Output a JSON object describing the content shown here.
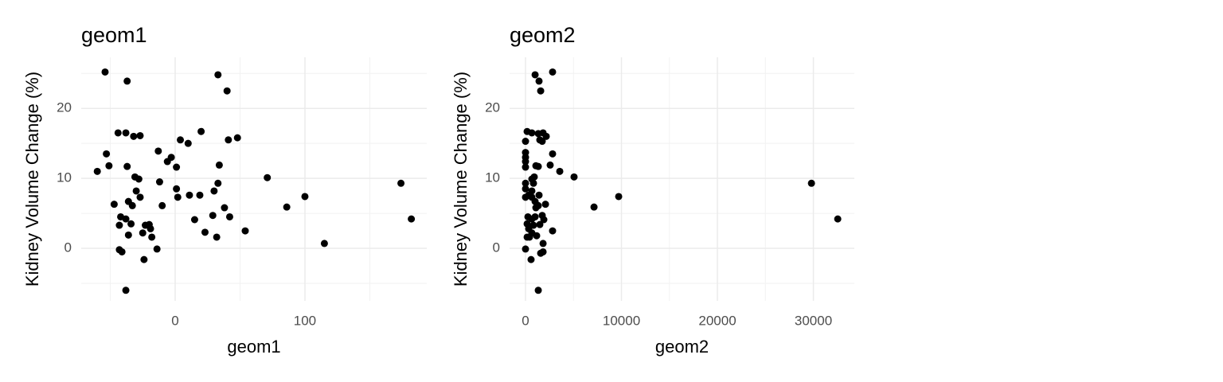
{
  "chart_data": [
    {
      "type": "scatter",
      "title": "geom1",
      "x_label": "geom1",
      "y_label": "Kidney Volume Change (%)",
      "color": "#000000",
      "grid": true,
      "xlim": [
        -72.4,
        193.9
      ],
      "ylim": [
        -7.5,
        27.3
      ],
      "xticks": [
        0,
        100
      ],
      "yticks": [
        0,
        10,
        20
      ],
      "minor_xticks": [
        -50,
        50,
        150
      ],
      "minor_yticks": [
        -5,
        5,
        15,
        25
      ],
      "x": [
        -54,
        -37,
        33,
        40,
        -44,
        -38,
        -32,
        -27,
        20,
        4,
        10,
        48,
        41,
        -53,
        -13,
        -3,
        -6,
        1,
        -51,
        -37,
        34,
        -60,
        -31,
        -28,
        71,
        -12,
        33,
        174,
        1,
        -30,
        30,
        11,
        19,
        -27,
        2,
        100,
        -36,
        -33,
        -47,
        -10,
        86,
        38,
        -42,
        -38,
        29,
        42,
        15,
        182,
        -34,
        -43,
        -23,
        -20,
        -19,
        -25,
        23,
        54,
        -36,
        -18,
        32,
        115,
        -14,
        -43,
        -41,
        -24,
        -38
      ],
      "values": [
        25.2,
        23.9,
        24.8,
        22.5,
        16.5,
        16.5,
        16,
        16.1,
        16.7,
        15.5,
        15,
        15.8,
        15.5,
        13.5,
        13.9,
        13,
        12.4,
        11.6,
        11.8,
        11.7,
        11.9,
        11,
        10.2,
        9.9,
        10.1,
        9.5,
        9.3,
        9.3,
        8.5,
        8.2,
        8.2,
        7.6,
        7.6,
        7.3,
        7.3,
        7.4,
        6.7,
        6.1,
        6.3,
        6.1,
        5.9,
        5.8,
        4.5,
        4.2,
        4.7,
        4.5,
        4.1,
        4.2,
        3.5,
        3.3,
        3.3,
        3.4,
        2.8,
        2.2,
        2.3,
        2.5,
        1.9,
        1.6,
        1.6,
        0.7,
        -0.1,
        -0.2,
        -0.5,
        -1.6,
        -6
      ]
    },
    {
      "type": "scatter",
      "title": "geom2",
      "x_label": "geom2",
      "y_label": "Kidney Volume Change (%)",
      "color": "#000000",
      "grid": true,
      "xlim": [
        -1660,
        34270
      ],
      "ylim": [
        -7.5,
        27.3
      ],
      "xticks": [
        0,
        10000,
        20000,
        30000
      ],
      "yticks": [
        0,
        10,
        20
      ],
      "minor_xticks": [
        5000,
        15000,
        25000
      ],
      "minor_yticks": [
        -5,
        5,
        15,
        25
      ],
      "x": [
        1000,
        2820,
        1410,
        1580,
        170,
        660,
        1330,
        1830,
        2160,
        0,
        1490,
        1740,
        0,
        2820,
        0,
        0,
        1080,
        1330,
        2570,
        0,
        3570,
        5060,
        910,
        660,
        0,
        29800,
        830,
        0,
        660,
        330,
        1410,
        0,
        660,
        9710,
        1000,
        1330,
        2080,
        7140,
        1080,
        250,
        660,
        1740,
        1000,
        1910,
        32540,
        170,
        1490,
        830,
        330,
        660,
        2820,
        170,
        1160,
        415,
        1830,
        0,
        1830,
        1580,
        580,
        1330
      ],
      "values": [
        24.8,
        25.2,
        23.9,
        22.5,
        16.7,
        16.5,
        16.4,
        16.5,
        16,
        15.3,
        15.5,
        15.3,
        13.7,
        13.5,
        13,
        12.4,
        11.8,
        11.7,
        11.9,
        11.6,
        11,
        10.2,
        10.2,
        9.9,
        9.3,
        9.3,
        9.3,
        8.5,
        8.2,
        7.6,
        7.6,
        7.3,
        7.3,
        7.4,
        6.7,
        6.1,
        6.3,
        5.9,
        5.8,
        4.5,
        4.2,
        4.7,
        4.5,
        4.1,
        4.2,
        3.5,
        3.4,
        3.3,
        2.8,
        2.2,
        2.5,
        1.6,
        1.8,
        1.6,
        0.7,
        -0.1,
        -0.5,
        -0.7,
        -1.6,
        -6
      ]
    }
  ]
}
